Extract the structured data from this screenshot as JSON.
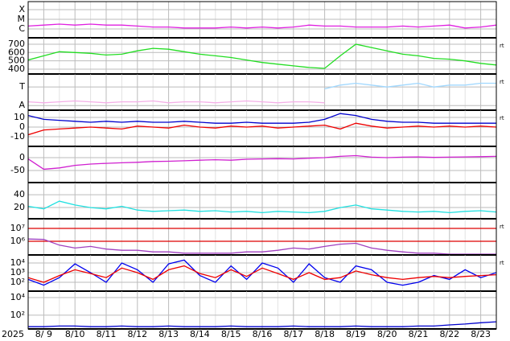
{
  "chart_data": [
    {
      "type": "line",
      "ylim": [
        -6.92,
        -3.17
      ],
      "yticks": [
        {
          "value": -4,
          "label": "X"
        },
        {
          "value": -5,
          "label": "M"
        },
        {
          "value": -6,
          "label": "C"
        }
      ],
      "series": [
        {
          "color": "#e020e0",
          "values": [
            -5.7,
            -5.6,
            -5.5,
            -5.6,
            -5.5,
            -5.6,
            -5.6,
            -5.7,
            -5.8,
            -5.8,
            -5.9,
            -5.9,
            -5.9,
            -5.8,
            -5.9,
            -5.8,
            -5.9,
            -5.8,
            -5.6,
            -5.7,
            -5.7,
            -5.8,
            -5.8,
            -5.8,
            -5.7,
            -5.8,
            -5.7,
            -5.6,
            -5.9,
            -5.8,
            -5.6
          ]
        }
      ]
    },
    {
      "type": "line",
      "ylim": [
        342,
        777
      ],
      "yticks": [
        700,
        600,
        500,
        400
      ],
      "right_label": "rt",
      "series": [
        {
          "color": "#22dd22",
          "values": [
            510,
            560,
            610,
            600,
            590,
            570,
            580,
            620,
            650,
            640,
            610,
            580,
            560,
            540,
            510,
            480,
            460,
            440,
            420,
            410,
            560,
            700,
            660,
            620,
            580,
            560,
            530,
            520,
            500,
            470,
            450
          ]
        }
      ]
    },
    {
      "type": "line",
      "ylim": [
        -0.25,
        1.7
      ],
      "yticks": [
        {
          "value": 1,
          "label": "T"
        },
        {
          "value": 0,
          "label": "A"
        }
      ],
      "right_label": "rt",
      "series": [
        {
          "color": "#f4b0e8",
          "values": [
            0.2,
            0.15,
            0.2,
            0.25,
            0.2,
            0.15,
            0.2,
            0.2,
            0.25,
            0.15,
            0.2,
            0.2,
            0.15,
            0.2,
            0.25,
            0.2,
            0.15,
            0.2,
            0.2,
            0.15,
            null,
            null,
            null,
            null,
            null,
            null,
            null,
            null,
            null,
            null,
            null
          ]
        },
        {
          "color": "#a0d8ff",
          "values": [
            null,
            null,
            null,
            null,
            null,
            null,
            null,
            null,
            null,
            null,
            null,
            null,
            null,
            null,
            null,
            null,
            null,
            null,
            null,
            0.9,
            1.1,
            1.2,
            1.1,
            1.0,
            1.1,
            1.2,
            1.0,
            1.1,
            1.1,
            1.2,
            1.2
          ]
        }
      ]
    },
    {
      "type": "line",
      "ylim": [
        -20,
        17.5
      ],
      "yticks": [
        10,
        0,
        -10
      ],
      "right_label": "rt",
      "series": [
        {
          "color": "#0000cc",
          "values": [
            12,
            8,
            7,
            6,
            5,
            6,
            5,
            6,
            5,
            5,
            6,
            5,
            4,
            4,
            5,
            4,
            4,
            4,
            5,
            8,
            14,
            12,
            8,
            6,
            5,
            5,
            4,
            4,
            4,
            4,
            4
          ]
        },
        {
          "color": "#ee0000",
          "values": [
            -8,
            -3,
            -2,
            -1,
            0,
            -1,
            -2,
            1,
            0,
            -1,
            2,
            0,
            -1,
            1,
            0,
            1,
            -1,
            0,
            1,
            2,
            -2,
            4,
            1,
            -1,
            0,
            1,
            0,
            1,
            0,
            1,
            0
          ]
        }
      ]
    },
    {
      "type": "line",
      "ylim": [
        -97,
        44
      ],
      "yticks": [
        0,
        -50
      ],
      "series": [
        {
          "color": "#d020d0",
          "values": [
            -5,
            -45,
            -40,
            -30,
            -25,
            -22,
            -20,
            -18,
            -15,
            -14,
            -12,
            -10,
            -8,
            -10,
            -6,
            -5,
            -4,
            -5,
            -2,
            0,
            5,
            8,
            2,
            0,
            2,
            3,
            1,
            2,
            3,
            4,
            5
          ]
        }
      ]
    },
    {
      "type": "line",
      "ylim": [
        2.5,
        59
      ],
      "yticks": [
        40,
        20
      ],
      "series": [
        {
          "color": "#20e0e0",
          "values": [
            22,
            18,
            30,
            24,
            20,
            18,
            22,
            16,
            14,
            15,
            16,
            14,
            15,
            13,
            14,
            12,
            14,
            13,
            12,
            14,
            20,
            24,
            18,
            16,
            14,
            13,
            14,
            12,
            14,
            15,
            13
          ]
        }
      ]
    },
    {
      "type": "line",
      "log_scale": true,
      "grid_color": "#dd0000",
      "ylim": [
        87000,
        56000000
      ],
      "yticks": [
        {
          "value": 10000000,
          "label": "10⁷"
        },
        {
          "value": 1000000,
          "label": "10⁶"
        }
      ],
      "right_label": "rt",
      "series": [
        {
          "color": "#a040c0",
          "values": [
            1500000,
            1400000,
            500000,
            300000,
            400000,
            250000,
            200000,
            200000,
            150000,
            150000,
            120000,
            120000,
            120000,
            120000,
            150000,
            150000,
            200000,
            300000,
            250000,
            400000,
            600000,
            700000,
            300000,
            200000,
            150000,
            120000,
            120000,
            100000,
            100000,
            100000,
            100000
          ]
        }
      ]
    },
    {
      "type": "line",
      "log_scale": true,
      "ylim": [
        12,
        68000
      ],
      "yticks": [
        {
          "value": 10000,
          "label": "10⁴"
        },
        {
          "value": 1000,
          "label": "10³"
        },
        {
          "value": 100,
          "label": "10²"
        }
      ],
      "right_label": "rt",
      "series": [
        {
          "color": "#0000ee",
          "values": [
            200,
            50,
            300,
            8000,
            1000,
            100,
            10000,
            2000,
            100,
            8000,
            20000,
            500,
            100,
            5000,
            200,
            10000,
            3000,
            100,
            8000,
            300,
            100,
            5000,
            2000,
            100,
            50,
            100,
            500,
            200,
            2000,
            300,
            1000
          ]
        },
        {
          "color": "#ee0000",
          "values": [
            300,
            100,
            500,
            2000,
            800,
            300,
            3000,
            1000,
            200,
            2000,
            5000,
            800,
            300,
            2000,
            400,
            3000,
            800,
            200,
            1000,
            200,
            300,
            1500,
            600,
            300,
            200,
            300,
            400,
            300,
            400,
            500,
            600
          ]
        }
      ]
    },
    {
      "type": "line",
      "log_scale": true,
      "ylim": [
        2.8,
        53000
      ],
      "yticks": [
        {
          "value": 10000,
          "label": "10⁴"
        },
        {
          "value": 100,
          "label": "10²"
        }
      ],
      "x_label": "2025",
      "categories": [
        null,
        "8/ 9",
        null,
        "8/10",
        null,
        "8/11",
        null,
        "8/12",
        null,
        "8/13",
        null,
        "8/14",
        null,
        "8/15",
        null,
        "8/16",
        null,
        "8/17",
        null,
        "8/18",
        null,
        "8/19",
        null,
        "8/20",
        null,
        "8/21",
        null,
        "8/22",
        null,
        "8/23",
        null
      ],
      "series": [
        {
          "color": "#0000cc",
          "values": [
            5,
            5,
            6,
            6,
            5,
            5,
            6,
            5,
            5,
            6,
            5,
            5,
            5,
            6,
            5,
            5,
            5,
            6,
            5,
            5,
            5,
            6,
            5,
            5,
            5,
            6,
            6,
            8,
            10,
            14,
            18
          ]
        }
      ]
    }
  ]
}
